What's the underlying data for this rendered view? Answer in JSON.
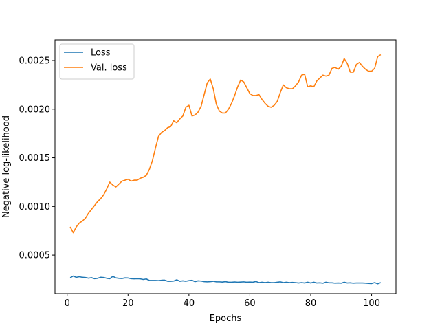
{
  "chart_data": {
    "type": "line",
    "title": "",
    "xlabel": "Epochs",
    "ylabel": "Negative log-likelihood",
    "xlim": [
      -4,
      108
    ],
    "ylim": [
      0.000105,
      0.002712
    ],
    "xticks": [
      0,
      20,
      40,
      60,
      80,
      100
    ],
    "xtick_labels": [
      "0",
      "20",
      "40",
      "60",
      "80",
      "100"
    ],
    "yticks": [
      0.0005,
      0.001,
      0.0015,
      0.002,
      0.0025
    ],
    "ytick_labels": [
      "0.0005",
      "0.0010",
      "0.0015",
      "0.0020",
      "0.0025"
    ],
    "grid": false,
    "legend_position": "upper left",
    "series": [
      {
        "name": "Loss",
        "color": "#1f77b4",
        "x": [
          1,
          2,
          3,
          4,
          5,
          6,
          7,
          8,
          9,
          10,
          11,
          12,
          13,
          14,
          15,
          16,
          17,
          18,
          19,
          20,
          21,
          22,
          23,
          24,
          25,
          26,
          27,
          28,
          29,
          30,
          31,
          32,
          33,
          34,
          35,
          36,
          37,
          38,
          39,
          40,
          41,
          42,
          43,
          44,
          45,
          46,
          47,
          48,
          49,
          50,
          51,
          52,
          53,
          54,
          55,
          56,
          57,
          58,
          59,
          60,
          61,
          62,
          63,
          64,
          65,
          66,
          67,
          68,
          69,
          70,
          71,
          72,
          73,
          74,
          75,
          76,
          77,
          78,
          79,
          80,
          81,
          82,
          83,
          84,
          85,
          86,
          87,
          88,
          89,
          90,
          91,
          92,
          93,
          94,
          95,
          96,
          97,
          98,
          99,
          100,
          101,
          102,
          103
        ],
        "values": [
          0.000268,
          0.000285,
          0.000272,
          0.000278,
          0.000272,
          0.00027,
          0.000263,
          0.000268,
          0.000258,
          0.000262,
          0.000272,
          0.00027,
          0.000262,
          0.000258,
          0.000282,
          0.000266,
          0.000262,
          0.00026,
          0.000266,
          0.000265,
          0.000258,
          0.000256,
          0.000258,
          0.000256,
          0.00025,
          0.000255,
          0.00024,
          0.00024,
          0.00024,
          0.000238,
          0.000242,
          0.000243,
          0.000232,
          0.000232,
          0.000234,
          0.000246,
          0.000232,
          0.000236,
          0.000232,
          0.000238,
          0.000242,
          0.000228,
          0.000236,
          0.000234,
          0.000228,
          0.000226,
          0.000228,
          0.000232,
          0.000226,
          0.000226,
          0.000224,
          0.000228,
          0.000222,
          0.000222,
          0.000225,
          0.000222,
          0.000224,
          0.000226,
          0.000222,
          0.000224,
          0.000222,
          0.00023,
          0.000218,
          0.000222,
          0.000218,
          0.000222,
          0.000218,
          0.000218,
          0.000222,
          0.000226,
          0.000218,
          0.000222,
          0.000218,
          0.00022,
          0.000218,
          0.000214,
          0.000218,
          0.000214,
          0.000222,
          0.000214,
          0.000222,
          0.000214,
          0.000216,
          0.000212,
          0.000222,
          0.000216,
          0.000216,
          0.000212,
          0.000214,
          0.000212,
          0.000222,
          0.000214,
          0.000216,
          0.000212,
          0.000214,
          0.000214,
          0.000214,
          0.000212,
          0.00021,
          0.000208,
          0.000218,
          0.000206,
          0.000218
        ]
      },
      {
        "name": "Val. loss",
        "color": "#ff7f0e",
        "x": [
          1,
          2,
          3,
          4,
          5,
          6,
          7,
          8,
          9,
          10,
          11,
          12,
          13,
          14,
          15,
          16,
          17,
          18,
          19,
          20,
          21,
          22,
          23,
          24,
          25,
          26,
          27,
          28,
          29,
          30,
          31,
          32,
          33,
          34,
          35,
          36,
          37,
          38,
          39,
          40,
          41,
          42,
          43,
          44,
          45,
          46,
          47,
          48,
          49,
          50,
          51,
          52,
          53,
          54,
          55,
          56,
          57,
          58,
          59,
          60,
          61,
          62,
          63,
          64,
          65,
          66,
          67,
          68,
          69,
          70,
          71,
          72,
          73,
          74,
          75,
          76,
          77,
          78,
          79,
          80,
          81,
          82,
          83,
          84,
          85,
          86,
          87,
          88,
          89,
          90,
          91,
          92,
          93,
          94,
          95,
          96,
          97,
          98,
          99,
          100,
          101,
          102,
          103
        ],
        "values": [
          0.00079,
          0.00073,
          0.00079,
          0.00083,
          0.00085,
          0.00088,
          0.00093,
          0.00097,
          0.00101,
          0.00105,
          0.00108,
          0.00112,
          0.00118,
          0.00125,
          0.00122,
          0.0012,
          0.00123,
          0.00126,
          0.00127,
          0.00128,
          0.00126,
          0.00127,
          0.00127,
          0.00129,
          0.0013,
          0.00132,
          0.00138,
          0.00147,
          0.0016,
          0.00172,
          0.00176,
          0.00178,
          0.00181,
          0.00182,
          0.00188,
          0.00186,
          0.0019,
          0.00193,
          0.00202,
          0.00204,
          0.00193,
          0.00194,
          0.00197,
          0.00203,
          0.00215,
          0.00227,
          0.00231,
          0.00221,
          0.00205,
          0.00198,
          0.00196,
          0.00196,
          0.002,
          0.00206,
          0.00214,
          0.00223,
          0.0023,
          0.00228,
          0.00222,
          0.00216,
          0.00214,
          0.00214,
          0.00215,
          0.0021,
          0.00206,
          0.00203,
          0.00202,
          0.00204,
          0.00208,
          0.00217,
          0.00225,
          0.00222,
          0.00221,
          0.00221,
          0.00224,
          0.00228,
          0.00235,
          0.00236,
          0.00223,
          0.00224,
          0.00223,
          0.00229,
          0.00232,
          0.00235,
          0.00234,
          0.00235,
          0.00242,
          0.00243,
          0.00241,
          0.00244,
          0.00252,
          0.00247,
          0.00238,
          0.00238,
          0.00246,
          0.00248,
          0.00244,
          0.00241,
          0.00239,
          0.00239,
          0.00242,
          0.00254,
          0.00256
        ]
      }
    ]
  }
}
